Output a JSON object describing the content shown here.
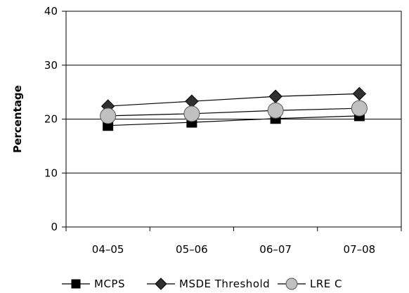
{
  "chart_data": {
    "type": "line",
    "title": "",
    "xlabel": "",
    "ylabel": "Percentage",
    "categories": [
      "04–05",
      "05–06",
      "06–07",
      "07–08"
    ],
    "ylim": [
      0,
      40
    ],
    "yticks": [
      0,
      10,
      20,
      30,
      40
    ],
    "grid": true,
    "legend_position": "bottom",
    "series": [
      {
        "name": "MCPS",
        "marker": "square",
        "color": "#000000",
        "values": [
          18.8,
          19.4,
          20.1,
          20.6
        ]
      },
      {
        "name": "MSDE Threshold",
        "marker": "diamond",
        "color": "#000000",
        "values": [
          22.4,
          23.3,
          24.2,
          24.7
        ]
      },
      {
        "name": "LRE C",
        "marker": "circle",
        "color": "#c0c0c0",
        "values": [
          20.6,
          21.0,
          21.6,
          22.0
        ]
      }
    ]
  }
}
